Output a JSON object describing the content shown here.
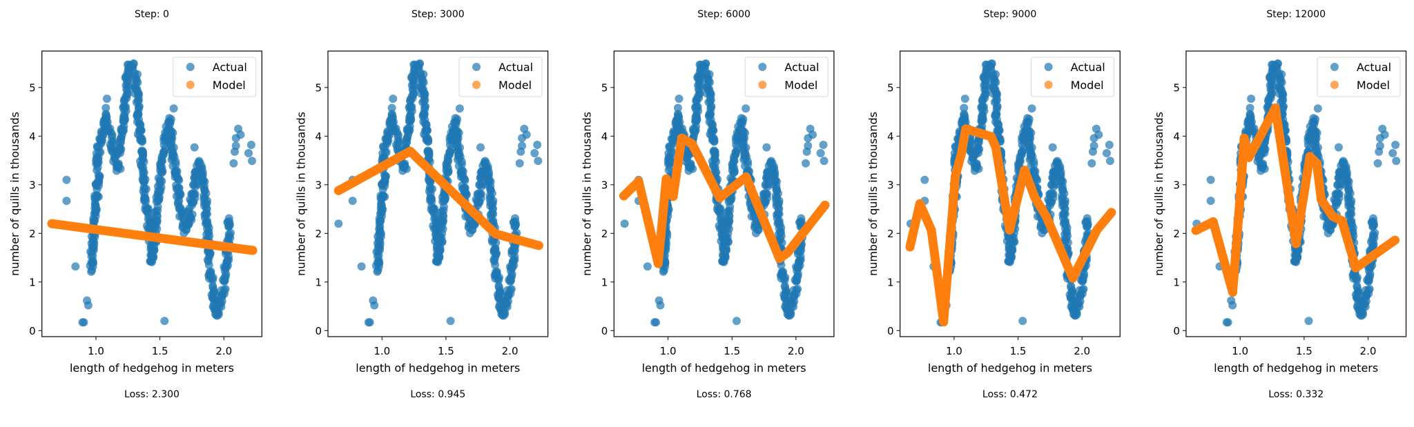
{
  "chart_data": {
    "type": "scatter",
    "xlabel": "length of hedgehog in meters",
    "ylabel": "number of quills in thousands",
    "xlim": [
      0.5775,
      2.297
    ],
    "ylim": [
      -0.124,
      5.75
    ],
    "xticks": [
      "1.0",
      "1.5",
      "2.0"
    ],
    "yticks": [
      "0",
      "1",
      "2",
      "3",
      "4",
      "5"
    ],
    "grid": false,
    "legend_placement": "top-right",
    "colors": {
      "actual": "#1f77b4",
      "model": "#ff7f0e"
    },
    "legend": [
      "Actual",
      "Model"
    ],
    "actual_band": [
      [
        0.969,
        1.24
      ],
      [
        0.969,
        1.62
      ],
      [
        0.978,
        1.88
      ],
      [
        0.987,
        2.4
      ],
      [
        0.996,
        2.59
      ],
      [
        1.005,
        2.78
      ],
      [
        1.014,
        3.06
      ],
      [
        1.02,
        3.2
      ],
      [
        1.014,
        3.44
      ],
      [
        1.023,
        3.77
      ],
      [
        1.041,
        3.96
      ],
      [
        1.059,
        4.25
      ],
      [
        1.077,
        4.43
      ],
      [
        1.095,
        4.1
      ],
      [
        1.131,
        3.87
      ],
      [
        1.149,
        3.54
      ],
      [
        1.176,
        3.35
      ],
      [
        1.185,
        3.77
      ],
      [
        1.203,
        4.1
      ],
      [
        1.221,
        4.53
      ],
      [
        1.239,
        4.96
      ],
      [
        1.248,
        5.47
      ],
      [
        1.284,
        5.43
      ],
      [
        1.311,
        5.19
      ],
      [
        1.329,
        4.72
      ],
      [
        1.338,
        4.25
      ],
      [
        1.356,
        3.68
      ],
      [
        1.374,
        3.06
      ],
      [
        1.401,
        2.45
      ],
      [
        1.419,
        1.98
      ],
      [
        1.437,
        1.41
      ],
      [
        1.455,
        1.65
      ],
      [
        1.464,
        2.26
      ],
      [
        1.491,
        2.83
      ],
      [
        1.518,
        3.49
      ],
      [
        1.545,
        4.01
      ],
      [
        1.572,
        4.29
      ],
      [
        1.59,
        4.1
      ],
      [
        1.599,
        3.68
      ],
      [
        1.626,
        3.3
      ],
      [
        1.644,
        2.83
      ],
      [
        1.671,
        2.35
      ],
      [
        1.707,
        2.07
      ],
      [
        1.734,
        2.35
      ],
      [
        1.761,
        2.83
      ],
      [
        1.788,
        3.39
      ],
      [
        1.815,
        3.44
      ],
      [
        1.833,
        3.06
      ],
      [
        1.86,
        2.59
      ],
      [
        1.869,
        2.26
      ],
      [
        1.878,
        1.65
      ],
      [
        1.896,
        1.17
      ],
      [
        1.914,
        0.7
      ],
      [
        1.941,
        0.32
      ],
      [
        1.959,
        0.37
      ],
      [
        1.986,
        0.7
      ],
      [
        2.004,
        1.03
      ],
      [
        2.022,
        1.41
      ],
      [
        2.04,
        1.98
      ],
      [
        2.04,
        2.31
      ]
    ],
    "actual_scattered": [
      [
        0.66,
        2.2
      ],
      [
        0.77,
        3.1
      ],
      [
        0.77,
        2.67
      ],
      [
        0.84,
        1.32
      ],
      [
        0.895,
        0.17
      ],
      [
        0.905,
        0.17
      ],
      [
        0.93,
        0.62
      ],
      [
        0.94,
        0.52
      ],
      [
        1.077,
        4.58
      ],
      [
        1.086,
        4.77
      ],
      [
        1.608,
        4.57
      ],
      [
        1.77,
        3.77
      ],
      [
        1.536,
        0.2
      ],
      [
        2.076,
        3.44
      ],
      [
        2.085,
        3.68
      ],
      [
        2.094,
        3.8
      ],
      [
        2.094,
        3.96
      ],
      [
        2.112,
        4.15
      ],
      [
        2.13,
        4.03
      ],
      [
        2.193,
        3.65
      ],
      [
        2.214,
        3.82
      ],
      [
        2.22,
        3.49
      ]
    ],
    "subplots": [
      {
        "title": "Step: 0",
        "loss": "Loss: 2.300",
        "model": [
          [
            0.655,
            2.2
          ],
          [
            2.225,
            1.65
          ]
        ]
      },
      {
        "title": "Step: 3000",
        "loss": "Loss: 0.945",
        "model": [
          [
            0.66,
            2.88
          ],
          [
            1.22,
            3.69
          ],
          [
            1.887,
            1.99
          ],
          [
            2.225,
            1.75
          ]
        ]
      },
      {
        "title": "Step: 6000",
        "loss": "Loss: 0.768",
        "model": [
          [
            0.654,
            2.77
          ],
          [
            0.77,
            3.07
          ],
          [
            0.923,
            1.38
          ],
          [
            0.986,
            3.12
          ],
          [
            1.04,
            2.76
          ],
          [
            1.107,
            3.96
          ],
          [
            1.188,
            3.84
          ],
          [
            1.404,
            2.73
          ],
          [
            1.61,
            3.16
          ],
          [
            1.871,
            1.48
          ],
          [
            1.934,
            1.6
          ],
          [
            2.227,
            2.58
          ]
        ]
      },
      {
        "title": "Step: 9000",
        "loss": "Loss: 0.472",
        "model": [
          [
            0.655,
            1.72
          ],
          [
            0.732,
            2.61
          ],
          [
            0.822,
            2.07
          ],
          [
            0.918,
            0.18
          ],
          [
            1.01,
            3.18
          ],
          [
            1.056,
            3.63
          ],
          [
            1.092,
            4.15
          ],
          [
            1.29,
            3.99
          ],
          [
            1.326,
            3.77
          ],
          [
            1.434,
            2.07
          ],
          [
            1.55,
            3.3
          ],
          [
            1.632,
            2.73
          ],
          [
            1.72,
            2.35
          ],
          [
            1.928,
            1.08
          ],
          [
            2.117,
            2.07
          ],
          [
            2.23,
            2.43
          ]
        ]
      },
      {
        "title": "Step: 12000",
        "loss": "Loss: 0.332",
        "model": [
          [
            0.654,
            2.06
          ],
          [
            0.789,
            2.24
          ],
          [
            0.942,
            0.79
          ],
          [
            1.005,
            2.92
          ],
          [
            1.032,
            3.96
          ],
          [
            1.068,
            3.56
          ],
          [
            1.275,
            4.58
          ],
          [
            1.437,
            1.79
          ],
          [
            1.545,
            3.58
          ],
          [
            1.599,
            3.44
          ],
          [
            1.634,
            2.69
          ],
          [
            1.724,
            2.35
          ],
          [
            1.796,
            2.26
          ],
          [
            1.904,
            1.29
          ],
          [
            2.21,
            1.86
          ]
        ]
      }
    ]
  }
}
